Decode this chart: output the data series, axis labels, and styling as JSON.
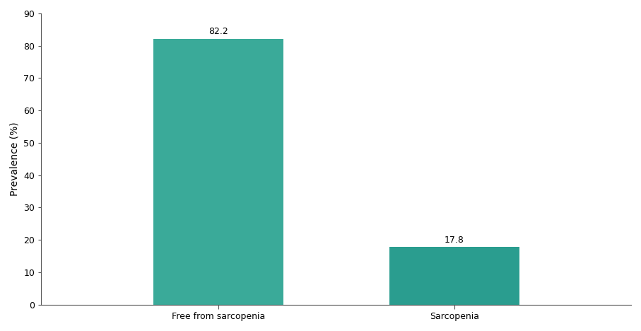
{
  "categories": [
    "Free from sarcopenia",
    "Sarcopenia"
  ],
  "values": [
    82.2,
    17.8
  ],
  "bar_color_1": "#3aaa99",
  "bar_color_2": "#2a9d8f",
  "bar_width": 0.22,
  "ylim": [
    0,
    90
  ],
  "yticks": [
    0,
    10,
    20,
    30,
    40,
    50,
    60,
    70,
    80,
    90
  ],
  "ylabel": "Prevalence (%)",
  "ylabel_fontsize": 10,
  "tick_fontsize": 9,
  "label_fontsize": 9,
  "value_label_fontsize": 9,
  "background_color": "#ffffff",
  "bar_edge_color": "none",
  "x_positions": [
    0.3,
    0.7
  ]
}
